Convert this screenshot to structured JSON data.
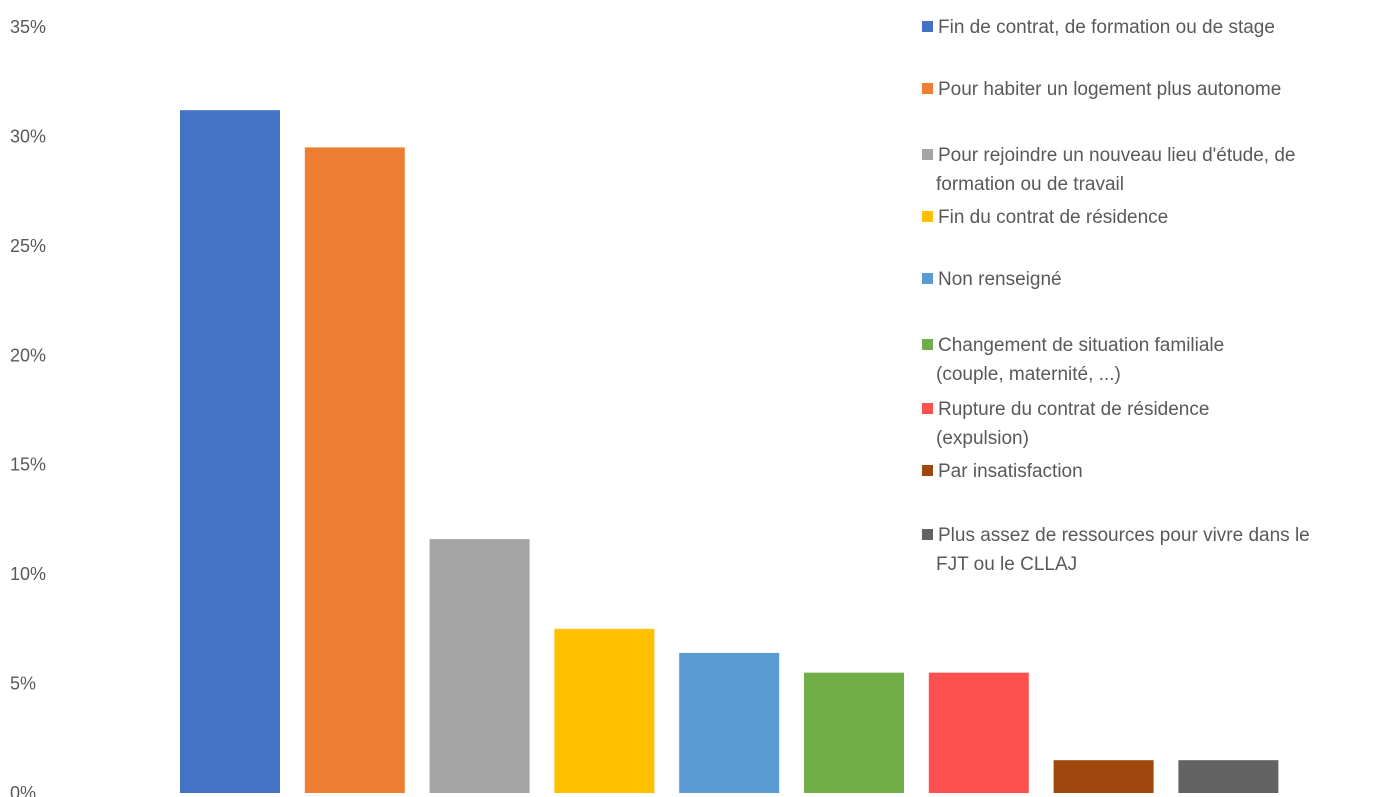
{
  "chart_data": {
    "type": "bar",
    "ylim": [
      0,
      35
    ],
    "y_ticks": [
      "0%",
      "5%",
      "10%",
      "15%",
      "20%",
      "25%",
      "30%",
      "35%"
    ],
    "y_tick_values": [
      0,
      5,
      10,
      15,
      20,
      25,
      30,
      35
    ],
    "grid": false,
    "legend_position": "right",
    "categories": [
      [
        "Fin de contrat, de formation ou de stage"
      ],
      [
        "Pour habiter un logement plus autonome"
      ],
      [
        "Pour rejoindre un nouveau lieu d'étude, de",
        "formation ou de travail"
      ],
      [
        "Fin du contrat de résidence"
      ],
      [
        "Non renseigné"
      ],
      [
        "Changement de situation familiale",
        "(couple, maternité, ...)"
      ],
      [
        "Rupture du contrat de résidence",
        "(expulsion)"
      ],
      [
        "Par insatisfaction"
      ],
      [
        "Plus assez de ressources pour vivre dans le",
        "FJT ou le CLLAJ"
      ]
    ],
    "values": [
      31.2,
      29.5,
      11.6,
      7.5,
      6.4,
      5.5,
      5.5,
      1.5,
      1.5
    ],
    "colors": [
      "#4472c4",
      "#ed7d31",
      "#a5a5a5",
      "#ffc000",
      "#5b9bd5",
      "#70ad47",
      "#ff5050",
      "#9e480e",
      "#636363"
    ]
  }
}
